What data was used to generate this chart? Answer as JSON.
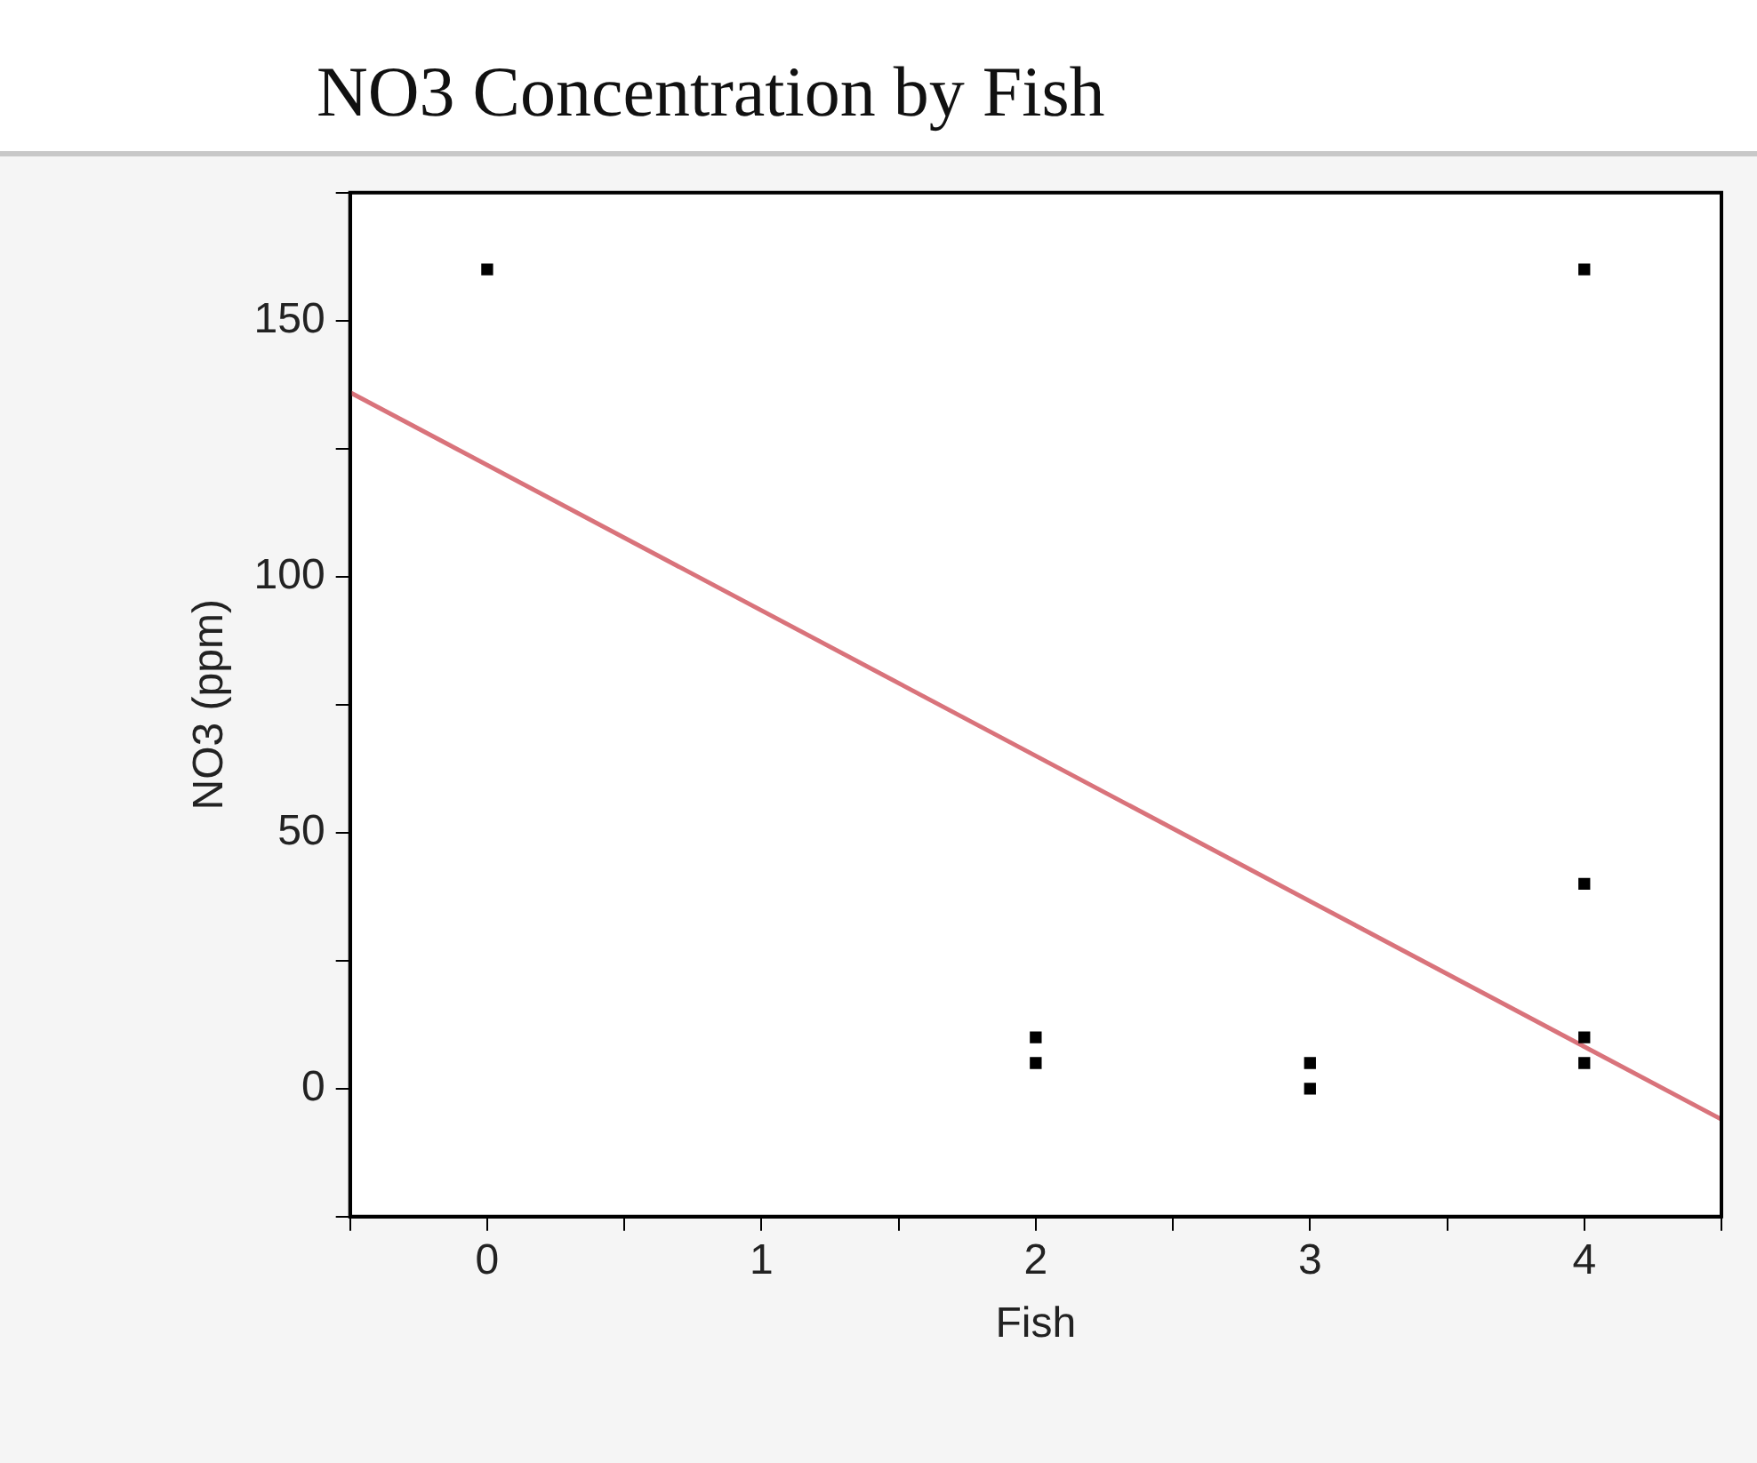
{
  "chart_data": {
    "type": "scatter",
    "title": "NO3 Concentration by Fish",
    "xlabel": "Fish",
    "ylabel": "NO3 (ppm)",
    "xlim": [
      -0.5,
      4.5
    ],
    "ylim": [
      -25,
      175
    ],
    "xticks": [
      {
        "value": -0.5,
        "label": null
      },
      0,
      {
        "value": 0.5,
        "label": null
      },
      1,
      {
        "value": 1.5,
        "label": null
      },
      2,
      {
        "value": 2.5,
        "label": null
      },
      3,
      {
        "value": 3.5,
        "label": null
      },
      4,
      {
        "value": 4.5,
        "label": null
      }
    ],
    "yticks": [
      {
        "value": -25,
        "label": null
      },
      0,
      {
        "value": 25,
        "label": null
      },
      50,
      {
        "value": 75,
        "label": null
      },
      100,
      {
        "value": 125,
        "label": null
      },
      150,
      {
        "value": 175,
        "label": null
      }
    ],
    "grid": false,
    "legend": false,
    "marker": "square",
    "series": [
      {
        "color": "#000000",
        "x": [
          0,
          2,
          2,
          3,
          3,
          4,
          4,
          4,
          4
        ],
        "values": [
          160,
          10,
          5,
          5,
          0,
          160,
          40,
          10,
          5
        ]
      },
      {
        "type": "line",
        "color": "#d9737b",
        "x": [
          -0.5,
          4.5
        ],
        "values": [
          136,
          -6
        ],
        "marker": "none",
        "line_style": "solid"
      }
    ]
  }
}
